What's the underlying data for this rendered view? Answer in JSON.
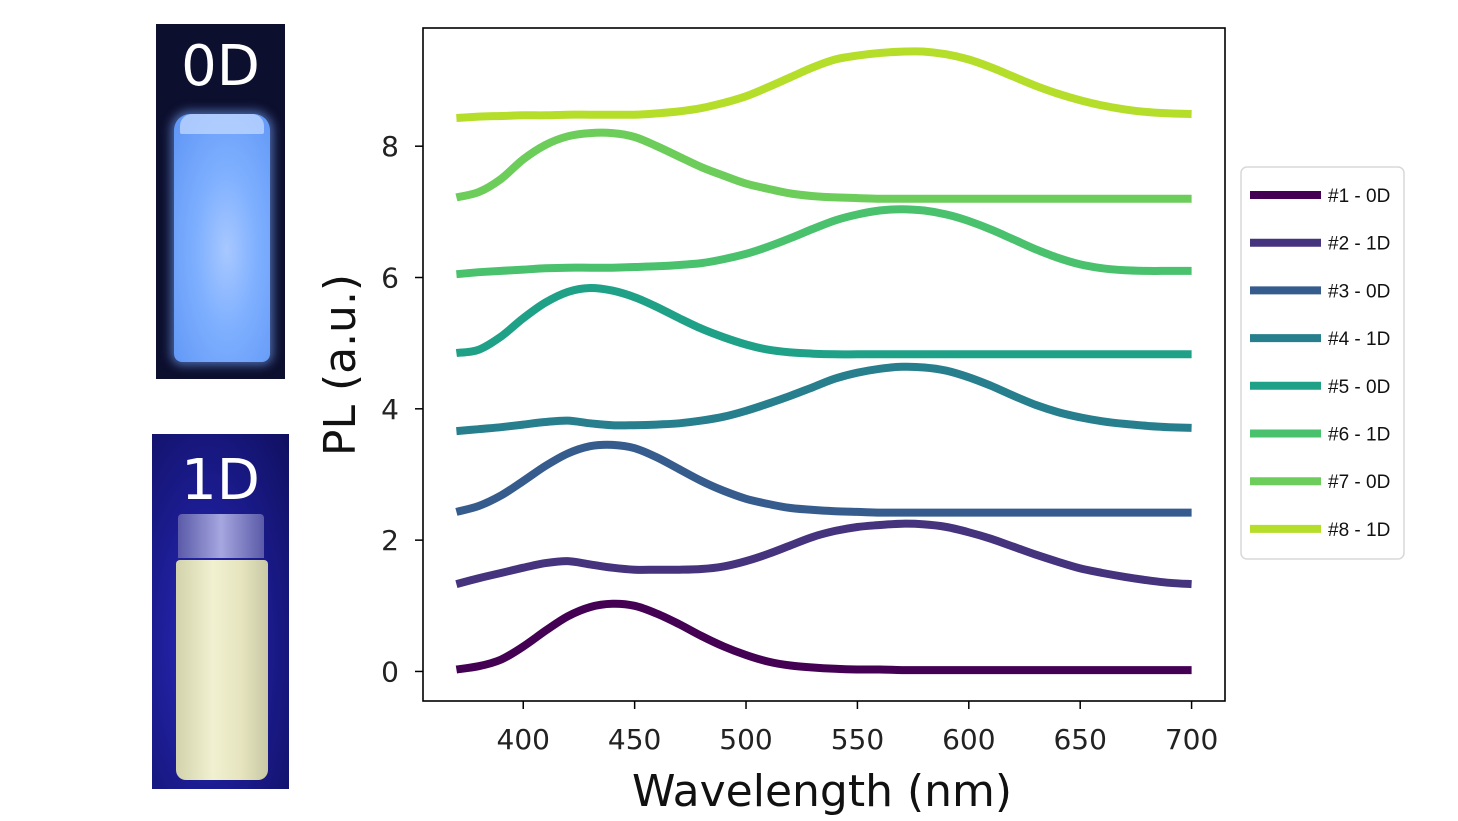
{
  "photos": [
    {
      "label": "0D"
    },
    {
      "label": "1D"
    }
  ],
  "chart_data": {
    "type": "line",
    "title": "",
    "xlabel": "Wavelength (nm)",
    "ylabel": "PL (a.u.)",
    "xlim": [
      355,
      715
    ],
    "ylim": [
      -0.45,
      9.8
    ],
    "xticks": [
      400,
      450,
      500,
      550,
      600,
      650,
      700
    ],
    "yticks": [
      0,
      2,
      4,
      6,
      8
    ],
    "legend_position": "right",
    "x": [
      370,
      380,
      390,
      400,
      410,
      420,
      430,
      440,
      450,
      460,
      470,
      480,
      490,
      500,
      510,
      520,
      530,
      540,
      550,
      560,
      570,
      580,
      590,
      600,
      610,
      620,
      630,
      640,
      650,
      660,
      670,
      680,
      690,
      700
    ],
    "series": [
      {
        "name": "#1 - 0D",
        "color": "#440154",
        "values": [
          0.03,
          0.08,
          0.18,
          0.38,
          0.62,
          0.84,
          0.98,
          1.03,
          1.0,
          0.88,
          0.72,
          0.54,
          0.38,
          0.25,
          0.15,
          0.09,
          0.06,
          0.04,
          0.03,
          0.03,
          0.02,
          0.02,
          0.02,
          0.02,
          0.02,
          0.02,
          0.02,
          0.02,
          0.02,
          0.02,
          0.02,
          0.02,
          0.02,
          0.02
        ]
      },
      {
        "name": "#2 - 1D",
        "color": "#46337e",
        "values": [
          1.33,
          1.42,
          1.5,
          1.58,
          1.65,
          1.68,
          1.63,
          1.58,
          1.55,
          1.55,
          1.55,
          1.56,
          1.6,
          1.68,
          1.79,
          1.92,
          2.05,
          2.14,
          2.2,
          2.23,
          2.25,
          2.24,
          2.2,
          2.12,
          2.02,
          1.9,
          1.78,
          1.67,
          1.57,
          1.5,
          1.44,
          1.39,
          1.35,
          1.33
        ]
      },
      {
        "name": "#3 - 0D",
        "color": "#365c8d",
        "values": [
          2.43,
          2.52,
          2.68,
          2.9,
          3.13,
          3.32,
          3.43,
          3.45,
          3.4,
          3.26,
          3.08,
          2.9,
          2.75,
          2.63,
          2.55,
          2.49,
          2.46,
          2.44,
          2.43,
          2.42,
          2.42,
          2.42,
          2.42,
          2.42,
          2.42,
          2.42,
          2.42,
          2.42,
          2.42,
          2.42,
          2.42,
          2.42,
          2.42,
          2.42
        ]
      },
      {
        "name": "#4 - 1D",
        "color": "#277f8e",
        "values": [
          3.66,
          3.69,
          3.72,
          3.76,
          3.8,
          3.82,
          3.78,
          3.75,
          3.75,
          3.76,
          3.78,
          3.82,
          3.88,
          3.97,
          4.08,
          4.2,
          4.33,
          4.46,
          4.55,
          4.61,
          4.64,
          4.63,
          4.58,
          4.48,
          4.35,
          4.2,
          4.06,
          3.95,
          3.87,
          3.81,
          3.77,
          3.74,
          3.72,
          3.71
        ]
      },
      {
        "name": "#5 - 0D",
        "color": "#1fa187",
        "values": [
          4.85,
          4.9,
          5.1,
          5.38,
          5.62,
          5.78,
          5.84,
          5.8,
          5.7,
          5.55,
          5.38,
          5.22,
          5.09,
          4.98,
          4.9,
          4.86,
          4.84,
          4.83,
          4.83,
          4.83,
          4.83,
          4.83,
          4.83,
          4.83,
          4.83,
          4.83,
          4.83,
          4.83,
          4.83,
          4.83,
          4.83,
          4.83,
          4.83,
          4.83
        ]
      },
      {
        "name": "#6 - 1D",
        "color": "#4ac16d",
        "values": [
          6.05,
          6.08,
          6.1,
          6.12,
          6.14,
          6.15,
          6.15,
          6.15,
          6.16,
          6.17,
          6.19,
          6.22,
          6.28,
          6.36,
          6.47,
          6.6,
          6.74,
          6.87,
          6.96,
          7.02,
          7.04,
          7.02,
          6.96,
          6.86,
          6.73,
          6.58,
          6.43,
          6.3,
          6.2,
          6.14,
          6.11,
          6.1,
          6.1,
          6.1
        ]
      },
      {
        "name": "#7 - 0D",
        "color": "#6ccd5a",
        "values": [
          7.22,
          7.3,
          7.5,
          7.8,
          8.02,
          8.15,
          8.2,
          8.2,
          8.14,
          8.0,
          7.84,
          7.68,
          7.55,
          7.43,
          7.35,
          7.28,
          7.24,
          7.22,
          7.21,
          7.2,
          7.2,
          7.2,
          7.2,
          7.2,
          7.2,
          7.2,
          7.2,
          7.2,
          7.2,
          7.2,
          7.2,
          7.2,
          7.2,
          7.2
        ]
      },
      {
        "name": "#8 - 1D",
        "color": "#b5de2b",
        "values": [
          8.43,
          8.45,
          8.46,
          8.47,
          8.47,
          8.48,
          8.48,
          8.48,
          8.48,
          8.5,
          8.53,
          8.58,
          8.66,
          8.76,
          8.9,
          9.05,
          9.2,
          9.32,
          9.38,
          9.42,
          9.44,
          9.44,
          9.4,
          9.32,
          9.2,
          9.06,
          8.92,
          8.8,
          8.7,
          8.62,
          8.56,
          8.52,
          8.5,
          8.49
        ]
      }
    ]
  }
}
